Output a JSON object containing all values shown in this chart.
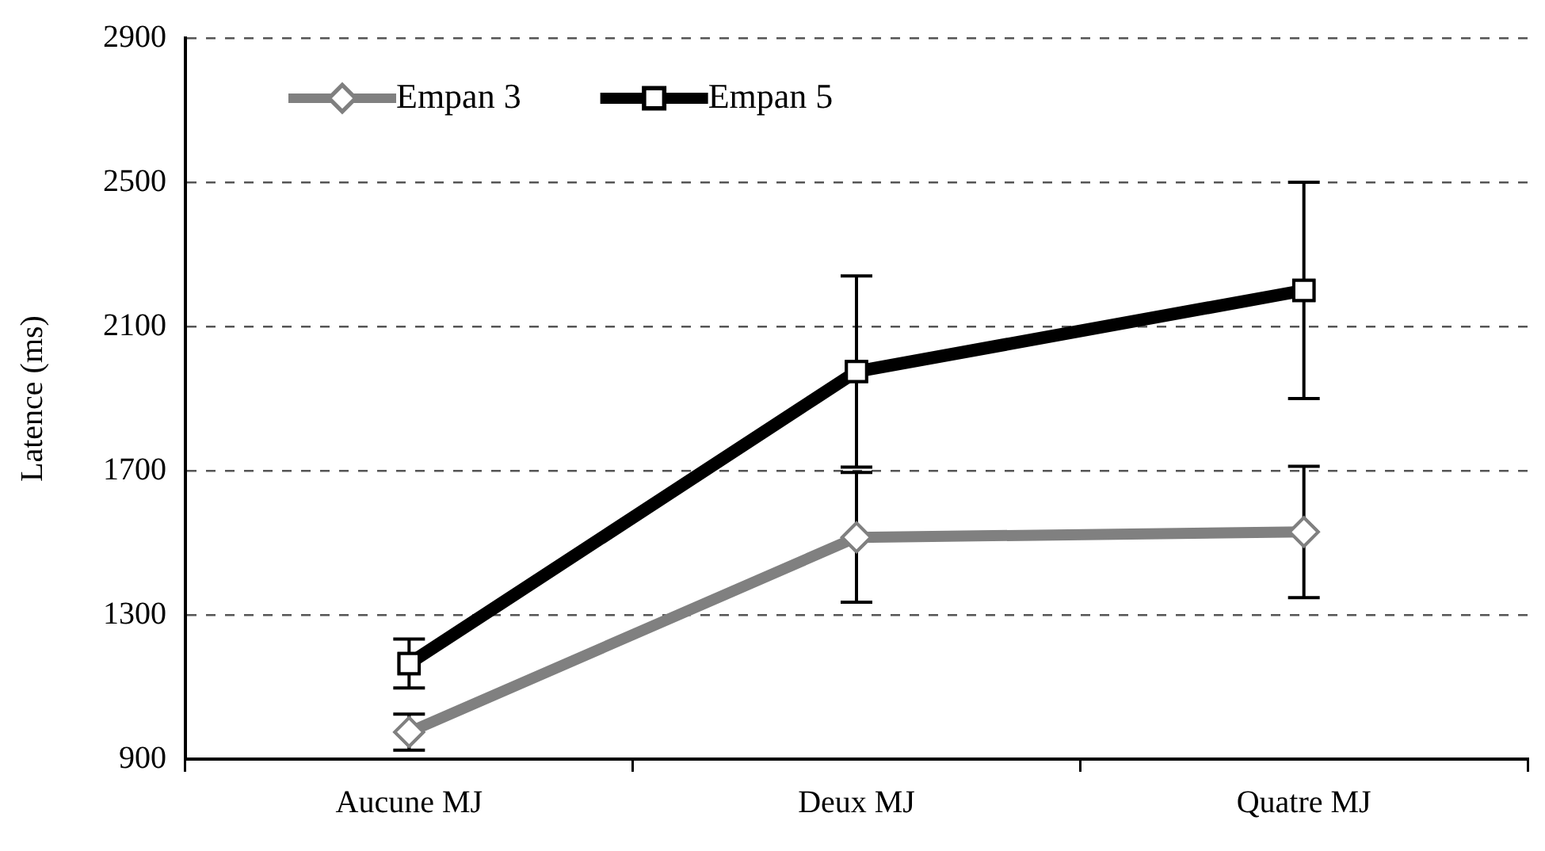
{
  "chart_data": {
    "type": "line",
    "ylabel": "Latence (ms)",
    "categories": [
      "Aucune MJ",
      "Deux MJ",
      "Quatre MJ"
    ],
    "series": [
      {
        "name": "Empan 3",
        "color": "#808080",
        "marker": "diamond",
        "values": [
          975,
          1515,
          1530
        ],
        "errors": [
          50,
          180,
          182
        ]
      },
      {
        "name": "Empan 5",
        "color": "#000000",
        "marker": "square",
        "values": [
          1165,
          1975,
          2200
        ],
        "errors": [
          68,
          265,
          300
        ]
      }
    ],
    "ylim": [
      900,
      2900
    ],
    "yticks": [
      900,
      1300,
      1700,
      2100,
      2500,
      2900
    ],
    "grid": "y",
    "legend": "top left",
    "line_style": "solid"
  }
}
